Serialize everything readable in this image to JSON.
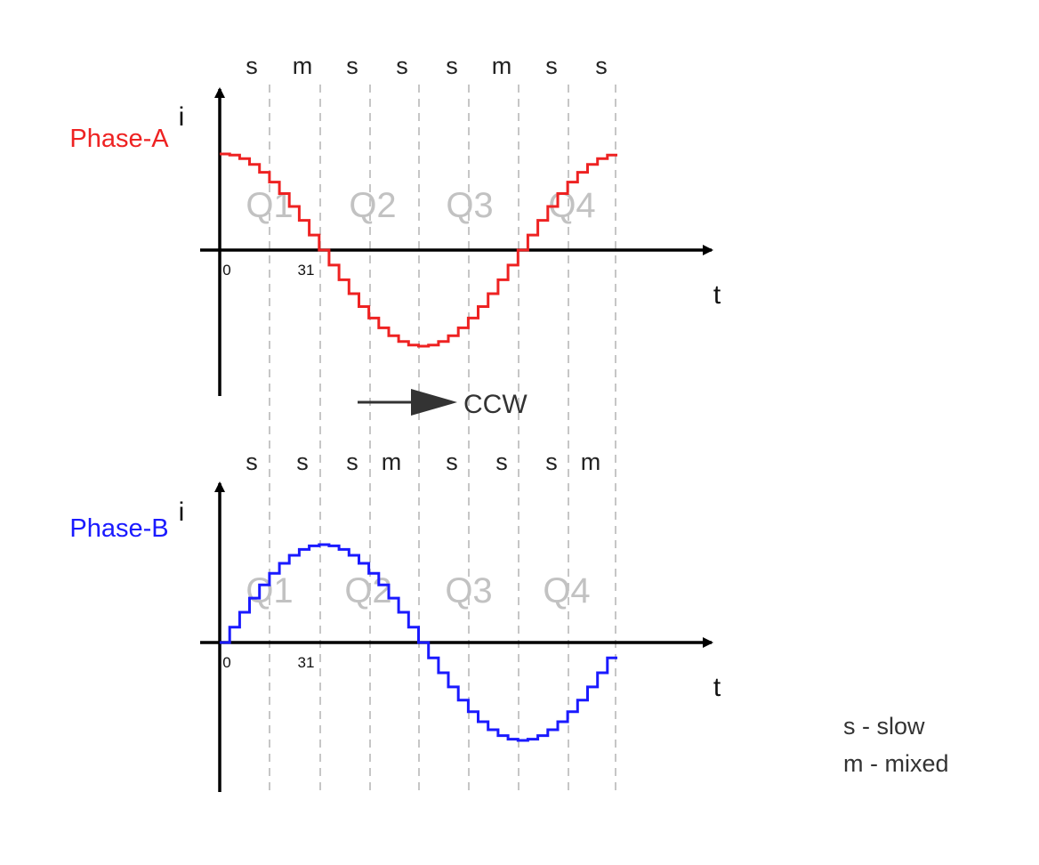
{
  "phase_a": {
    "label": "Phase-A",
    "color": "#ee2222",
    "decay_modes": [
      "s",
      "m",
      "s",
      "s",
      "s",
      "m",
      "s",
      "s"
    ],
    "quadrants": [
      "Q1",
      "Q2",
      "Q3",
      "Q4"
    ],
    "y_axis_label": "i",
    "x_axis_label": "t",
    "origin_tick": "0",
    "step_tick": "31",
    "waveform": "cosine"
  },
  "phase_b": {
    "label": "Phase-B",
    "color": "#1a1aff",
    "decay_modes": [
      "s",
      "s",
      "s",
      "m",
      "s",
      "s",
      "s",
      "m"
    ],
    "quadrants": [
      "Q1",
      "Q2",
      "Q3",
      "Q4"
    ],
    "y_axis_label": "i",
    "x_axis_label": "t",
    "origin_tick": "0",
    "step_tick": "31",
    "waveform": "sine"
  },
  "direction": {
    "label": "CCW"
  },
  "legend": [
    "s - slow",
    "m - mixed"
  ]
}
